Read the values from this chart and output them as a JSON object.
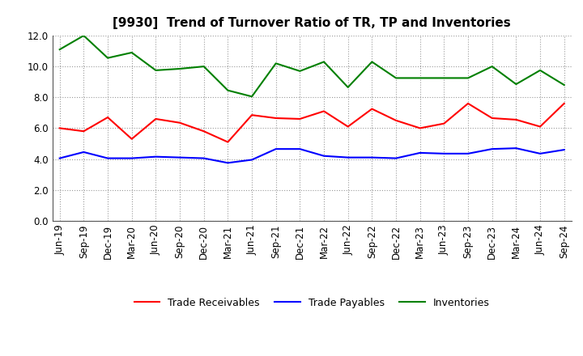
{
  "title": "[9930]  Trend of Turnover Ratio of TR, TP and Inventories",
  "ylim": [
    0.0,
    12.0
  ],
  "yticks": [
    0.0,
    2.0,
    4.0,
    6.0,
    8.0,
    10.0,
    12.0
  ],
  "x_labels": [
    "Jun-19",
    "Sep-19",
    "Dec-19",
    "Mar-20",
    "Jun-20",
    "Sep-20",
    "Dec-20",
    "Mar-21",
    "Jun-21",
    "Sep-21",
    "Dec-21",
    "Mar-22",
    "Jun-22",
    "Sep-22",
    "Dec-22",
    "Mar-23",
    "Jun-23",
    "Sep-23",
    "Dec-23",
    "Mar-24",
    "Jun-24",
    "Sep-24"
  ],
  "trade_receivables": [
    6.0,
    5.8,
    6.7,
    5.3,
    6.6,
    6.35,
    5.8,
    5.1,
    6.85,
    6.65,
    6.6,
    7.1,
    6.1,
    7.25,
    6.5,
    6.0,
    6.3,
    7.6,
    6.65,
    6.55,
    6.1,
    7.6
  ],
  "trade_payables": [
    4.05,
    4.45,
    4.05,
    4.05,
    4.15,
    4.1,
    4.05,
    3.75,
    3.95,
    4.65,
    4.65,
    4.2,
    4.1,
    4.1,
    4.05,
    4.4,
    4.35,
    4.35,
    4.65,
    4.7,
    4.35,
    4.6
  ],
  "inventories": [
    11.1,
    12.0,
    10.55,
    10.9,
    9.75,
    9.85,
    10.0,
    8.45,
    8.05,
    10.2,
    9.7,
    10.3,
    8.65,
    10.3,
    9.25,
    9.25,
    9.25,
    9.25,
    10.0,
    8.85,
    9.75,
    8.8
  ],
  "tr_color": "#ff0000",
  "tp_color": "#0000ff",
  "inv_color": "#008000",
  "bg_color": "#ffffff",
  "plot_bg_color": "#ffffff",
  "grid_color": "#999999",
  "legend_labels": [
    "Trade Receivables",
    "Trade Payables",
    "Inventories"
  ],
  "title_fontsize": 11,
  "tick_fontsize": 8.5,
  "legend_fontsize": 9
}
